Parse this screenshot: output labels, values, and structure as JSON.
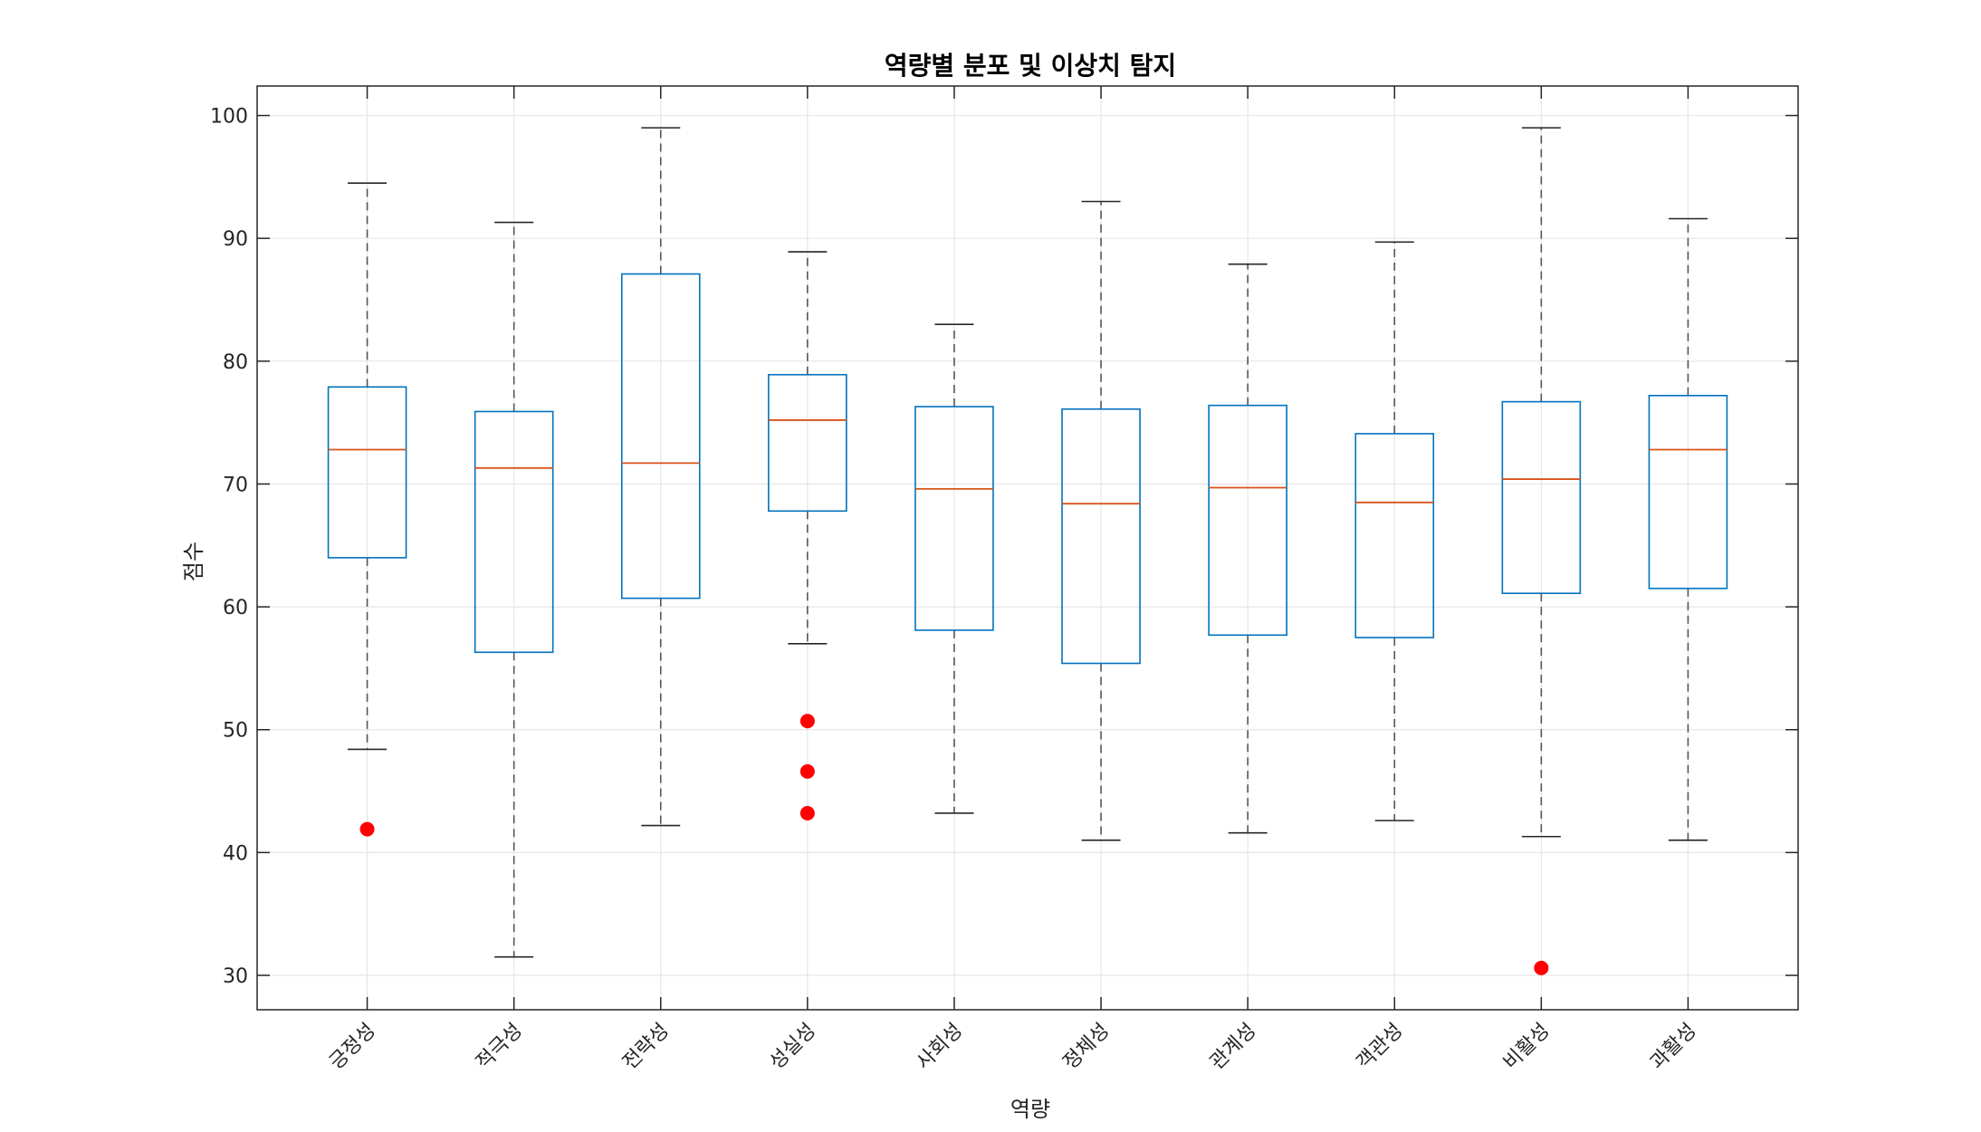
{
  "chart_data": {
    "type": "box",
    "title": "역량별 분포 및 이상치 탐지",
    "xlabel": "역량",
    "ylabel": "점수",
    "ylim": [
      27.2,
      102.4
    ],
    "yticks": [
      30,
      40,
      50,
      60,
      70,
      80,
      90,
      100
    ],
    "grid": true,
    "categories": [
      "긍정성",
      "적극성",
      "전략성",
      "성실성",
      "사회성",
      "정체성",
      "관계성",
      "객관성",
      "비활성",
      "과활성"
    ],
    "boxes": [
      {
        "whisker_low": 48.4,
        "q1": 64.0,
        "median": 72.8,
        "q3": 77.9,
        "whisker_high": 94.5,
        "outliers": [
          41.9
        ]
      },
      {
        "whisker_low": 31.5,
        "q1": 56.3,
        "median": 71.3,
        "q3": 75.9,
        "whisker_high": 91.3,
        "outliers": []
      },
      {
        "whisker_low": 42.2,
        "q1": 60.7,
        "median": 71.7,
        "q3": 87.1,
        "whisker_high": 99.0,
        "outliers": []
      },
      {
        "whisker_low": 57.0,
        "q1": 67.8,
        "median": 75.2,
        "q3": 78.9,
        "whisker_high": 88.9,
        "outliers": [
          50.7,
          46.6,
          43.2
        ]
      },
      {
        "whisker_low": 43.2,
        "q1": 58.1,
        "median": 69.6,
        "q3": 76.3,
        "whisker_high": 83.0,
        "outliers": []
      },
      {
        "whisker_low": 41.0,
        "q1": 55.4,
        "median": 68.4,
        "q3": 76.1,
        "whisker_high": 93.0,
        "outliers": []
      },
      {
        "whisker_low": 41.6,
        "q1": 57.7,
        "median": 69.7,
        "q3": 76.4,
        "whisker_high": 87.9,
        "outliers": []
      },
      {
        "whisker_low": 42.6,
        "q1": 57.5,
        "median": 68.5,
        "q3": 74.1,
        "whisker_high": 89.7,
        "outliers": []
      },
      {
        "whisker_low": 41.3,
        "q1": 61.1,
        "median": 70.4,
        "q3": 76.7,
        "whisker_high": 99.0,
        "outliers": [
          30.6
        ]
      },
      {
        "whisker_low": 41.0,
        "q1": 61.5,
        "median": 72.8,
        "q3": 77.2,
        "whisker_high": 91.6,
        "outliers": []
      }
    ],
    "colors": {
      "box": "#0072BD",
      "median": "#D95319",
      "whisker": "#555555",
      "outlier": "#FF0000",
      "grid": "#e6e6e6",
      "axis": "#262626"
    }
  }
}
